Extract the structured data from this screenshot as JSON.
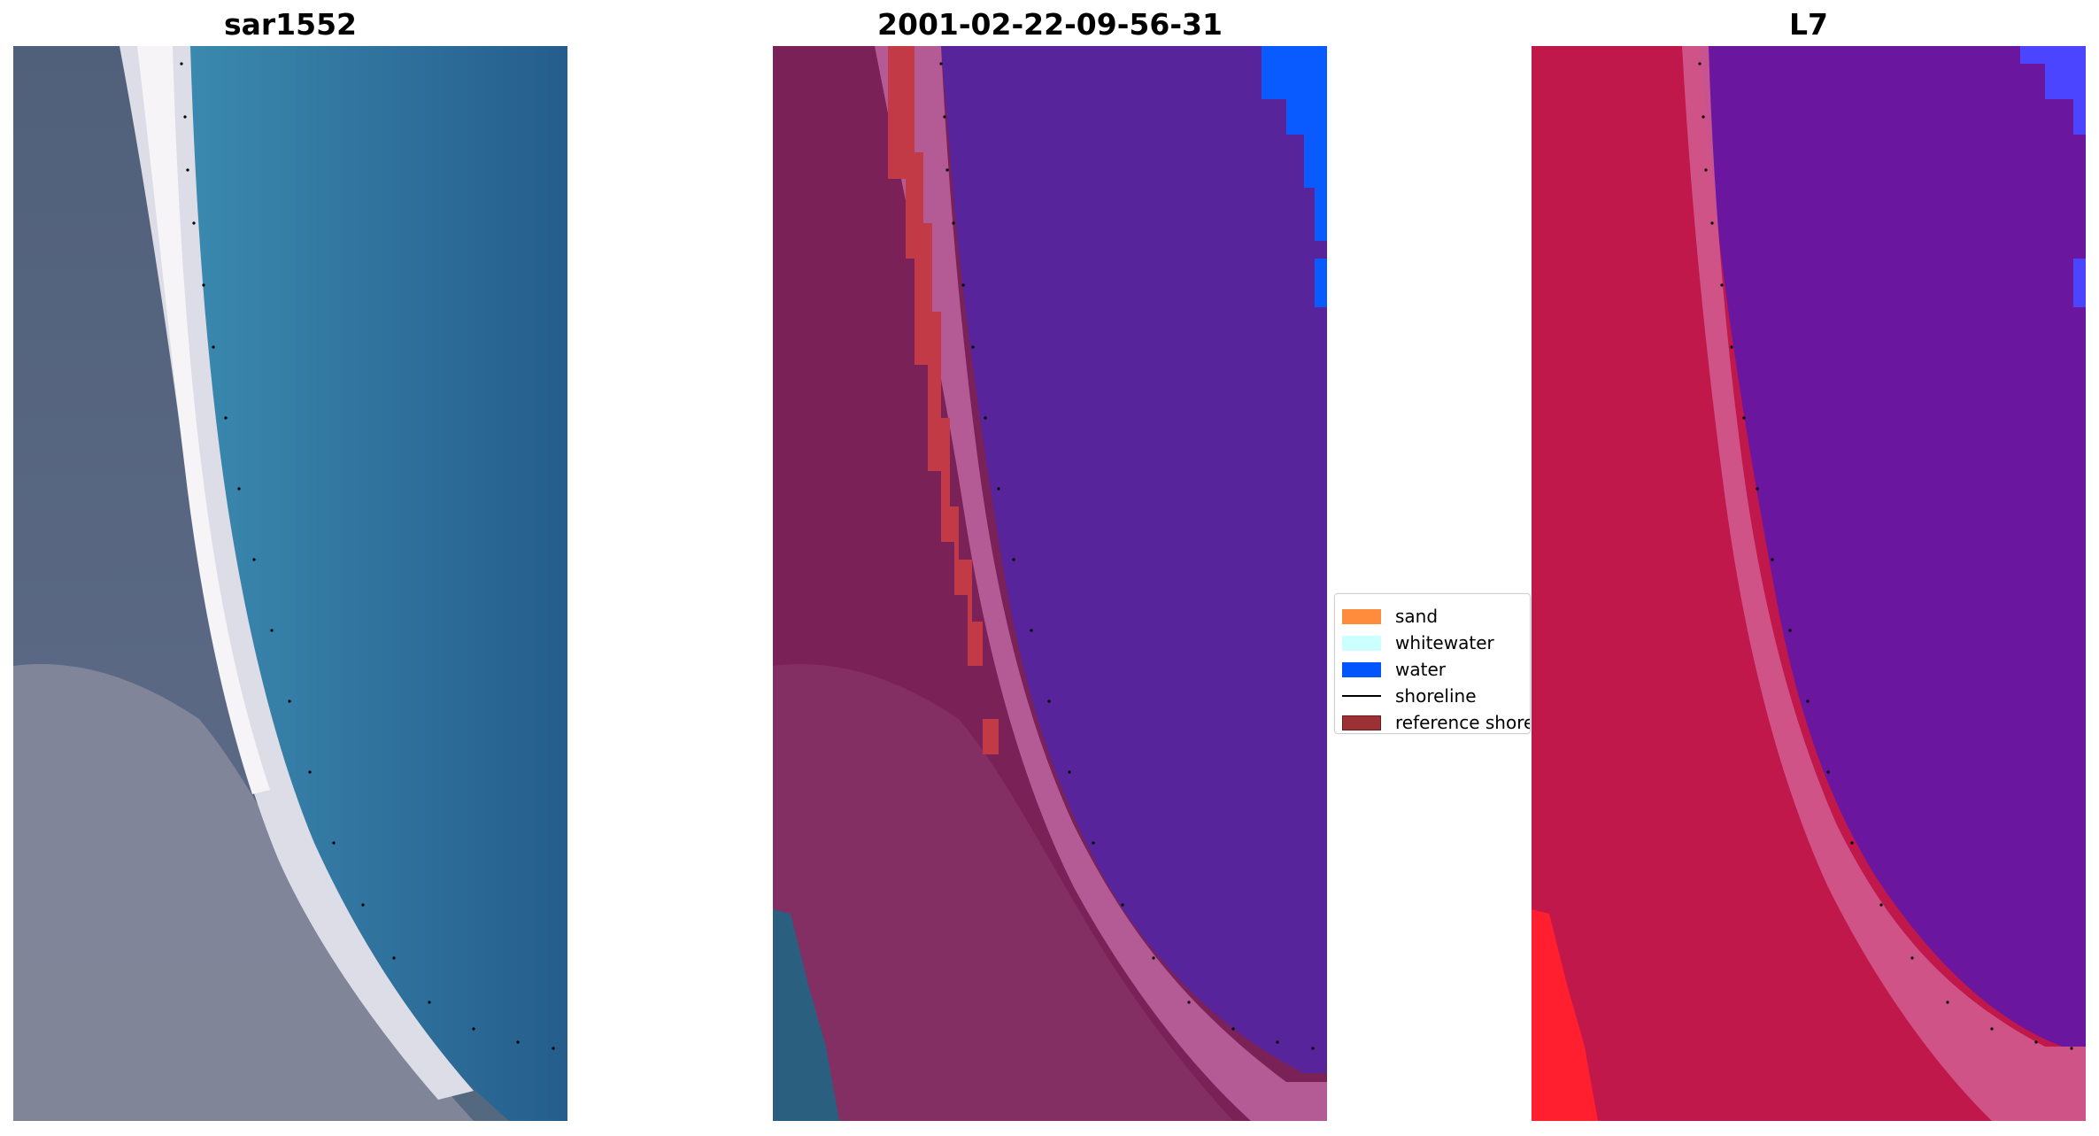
{
  "panels": [
    {
      "title": "sar1552"
    },
    {
      "title": "2001-02-22-09-56-31"
    },
    {
      "title": "L7"
    }
  ],
  "legend": {
    "items": [
      {
        "label": "sand",
        "color": "#ff8c3c",
        "kind": "patch"
      },
      {
        "label": "whitewater",
        "color": "#ccffff",
        "kind": "patch"
      },
      {
        "label": "water",
        "color": "#0055ff",
        "kind": "patch"
      },
      {
        "label": "shoreline",
        "color": "#000000",
        "kind": "line"
      },
      {
        "label": "reference shoreline",
        "color": "#9b3035",
        "kind": "patch"
      }
    ]
  },
  "colors": {
    "water_rgb": "#2f6f9c",
    "land_rgb": "#5e6f88",
    "classified_water": "#57249b",
    "classified_land": "#7a2158",
    "nir_land": "#c0184a",
    "nir_water": "#6a169e"
  }
}
